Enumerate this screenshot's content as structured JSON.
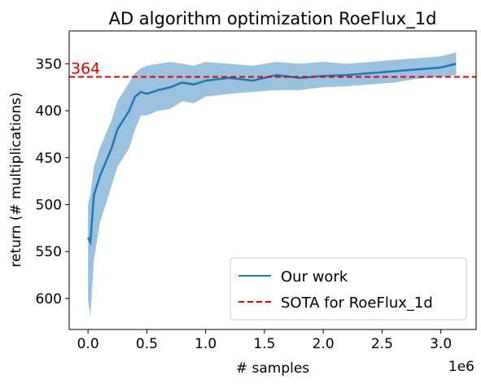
{
  "chart_data": {
    "type": "line",
    "title": "AD algorithm optimization RoeFlux_1d",
    "x_label": "# samples",
    "y_label": "return (# multiplications)",
    "x_offset_label": "1e6",
    "x": [
      0,
      20000,
      50000,
      100000,
      150000,
      200000,
      250000,
      300000,
      350000,
      400000,
      450000,
      500000,
      600000,
      700000,
      800000,
      900000,
      1000000,
      1200000,
      1400000,
      1600000,
      1800000,
      2000000,
      2200000,
      2400000,
      2600000,
      2800000,
      3000000,
      3130000
    ],
    "series": [
      {
        "name": "Our work",
        "color": "#1f77b4",
        "band_color": "#8fbbdc",
        "values": [
          535,
          540,
          490,
          470,
          455,
          440,
          420,
          410,
          400,
          385,
          380,
          382,
          378,
          375,
          370,
          372,
          368,
          365,
          368,
          362,
          365,
          363,
          362,
          360,
          358,
          356,
          354,
          350
        ],
        "lower": [
          500,
          490,
          460,
          440,
          425,
          410,
          390,
          380,
          370,
          360,
          355,
          352,
          350,
          348,
          350,
          352,
          348,
          350,
          352,
          348,
          350,
          348,
          350,
          348,
          346,
          344,
          342,
          338
        ],
        "upper": [
          600,
          620,
          560,
          520,
          500,
          480,
          460,
          450,
          440,
          420,
          405,
          405,
          400,
          398,
          390,
          392,
          385,
          382,
          380,
          378,
          378,
          375,
          374,
          372,
          370,
          366,
          364,
          362
        ]
      }
    ],
    "reference_line": {
      "name": "SOTA for RoeFlux_1d",
      "value": 364,
      "color": "#e00000"
    },
    "xlim": [
      -160000,
      3300000
    ],
    "xticks": [
      {
        "value": 0,
        "label": "0.0"
      },
      {
        "value": 500000,
        "label": "0.5"
      },
      {
        "value": 1000000,
        "label": "1.0"
      },
      {
        "value": 1500000,
        "label": "1.5"
      },
      {
        "value": 2000000,
        "label": "2.0"
      },
      {
        "value": 2500000,
        "label": "2.5"
      },
      {
        "value": 3000000,
        "label": "3.0"
      }
    ],
    "ylim": [
      315,
      633
    ],
    "y_inverted": true,
    "yticks": [
      350,
      400,
      450,
      500,
      550,
      600
    ],
    "legend": "lower right"
  }
}
